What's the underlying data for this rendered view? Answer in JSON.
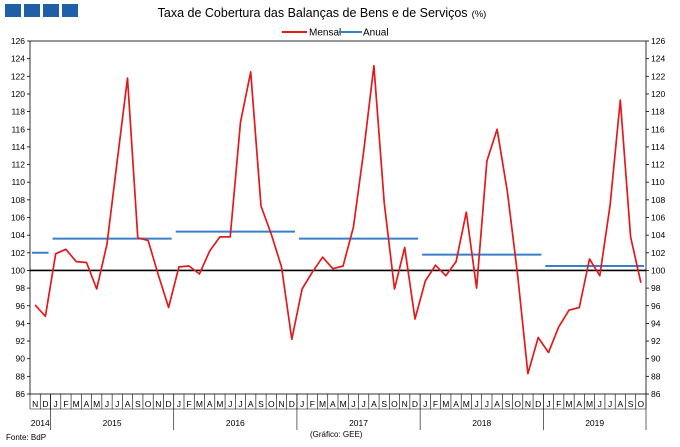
{
  "header": {
    "title": "Taxa de Cobertura das Balanças de Bens e de Serviços",
    "unit": "(%)"
  },
  "footer": {
    "source": "Fonte: BdP",
    "credit": "(Gráfico: GEE)"
  },
  "chart_data": {
    "type": "line",
    "title": "Taxa de Cobertura das Balanças de Bens e de Serviços (%)",
    "ylim": [
      86,
      126
    ],
    "yticks": [
      86,
      88,
      90,
      92,
      94,
      96,
      98,
      100,
      102,
      104,
      106,
      108,
      110,
      112,
      114,
      116,
      118,
      120,
      122,
      124,
      126
    ],
    "y_axis_left_and_right": true,
    "reference_line": 100,
    "legend_position": "top-center",
    "month_labels": [
      "N",
      "D",
      "J",
      "F",
      "M",
      "A",
      "M",
      "J",
      "J",
      "A",
      "S",
      "O",
      "N",
      "D",
      "J",
      "F",
      "M",
      "A",
      "M",
      "J",
      "J",
      "A",
      "S",
      "O",
      "N",
      "D",
      "J",
      "F",
      "M",
      "A",
      "M",
      "J",
      "J",
      "A",
      "S",
      "O",
      "N",
      "D",
      "J",
      "F",
      "M",
      "A",
      "M",
      "J",
      "J",
      "A",
      "S",
      "O",
      "N",
      "D",
      "J",
      "F",
      "M",
      "A",
      "M",
      "J",
      "J",
      "A",
      "S",
      "O"
    ],
    "year_labels": [
      {
        "label": "2014",
        "from": 0,
        "to": 1
      },
      {
        "label": "2015",
        "from": 2,
        "to": 13
      },
      {
        "label": "2016",
        "from": 14,
        "to": 25
      },
      {
        "label": "2017",
        "from": 26,
        "to": 37
      },
      {
        "label": "2018",
        "from": 38,
        "to": 49
      },
      {
        "label": "2019",
        "from": 50,
        "to": 59
      }
    ],
    "series": [
      {
        "name": "Mensal",
        "color": "#e31a1c",
        "style": "line",
        "values": [
          96.1,
          94.8,
          101.9,
          102.4,
          101.0,
          100.9,
          97.9,
          103.0,
          112.5,
          121.8,
          103.7,
          103.4,
          99.5,
          95.8,
          100.4,
          100.5,
          99.6,
          102.2,
          103.8,
          103.8,
          116.8,
          122.5,
          107.3,
          104.1,
          100.4,
          92.2,
          97.9,
          99.8,
          101.5,
          100.2,
          100.5,
          104.9,
          113.5,
          123.2,
          107.7,
          97.9,
          102.6,
          94.5,
          98.8,
          100.6,
          99.4,
          101.0,
          106.6,
          98.0,
          112.4,
          116.0,
          108.9,
          99.4,
          88.3,
          92.4,
          90.7,
          93.6,
          95.5,
          95.8,
          101.3,
          99.4,
          107.4,
          119.3,
          103.8,
          98.6
        ]
      },
      {
        "name": "Anual",
        "color": "#3a7dc9",
        "style": "step",
        "segments": [
          {
            "year": "2014",
            "from": 0,
            "to": 1,
            "value": 102.0
          },
          {
            "year": "2015",
            "from": 2,
            "to": 13,
            "value": 103.6
          },
          {
            "year": "2016",
            "from": 14,
            "to": 25,
            "value": 104.4
          },
          {
            "year": "2017",
            "from": 26,
            "to": 37,
            "value": 103.6
          },
          {
            "year": "2018",
            "from": 38,
            "to": 49,
            "value": 101.8
          },
          {
            "year": "2019",
            "from": 50,
            "to": 59,
            "value": 100.5
          }
        ]
      }
    ]
  }
}
